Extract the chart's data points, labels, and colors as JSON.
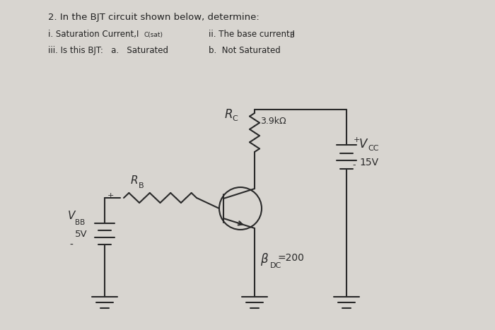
{
  "bg_color": "#d8d5d0",
  "paper_color": "#f0ede8",
  "title_text": "2. In the BJT circuit shown below, determine:",
  "line1a": "i. Saturation Current,I",
  "line1a_sub": "C(sat)",
  "line1b": "ii. The base current,I",
  "line1b_sub": "B",
  "line2a": "iii. Is this BJT:   a.   Saturated",
  "line2b": "b.  Not Saturated",
  "rc_label": "R",
  "rc_sub": "C",
  "rc_val": "3.9kΩ",
  "rb_label": "R",
  "rb_sub": "B",
  "vbb_label": "V",
  "vbb_sub": "BB",
  "vbb_val": "5V",
  "vcc_label": "V",
  "vcc_sub": "CC",
  "vcc_val": "15V",
  "beta_label": "β",
  "beta_sub": "DC",
  "beta_val": "=200",
  "plus_sign": "+",
  "minus_sign": "-"
}
